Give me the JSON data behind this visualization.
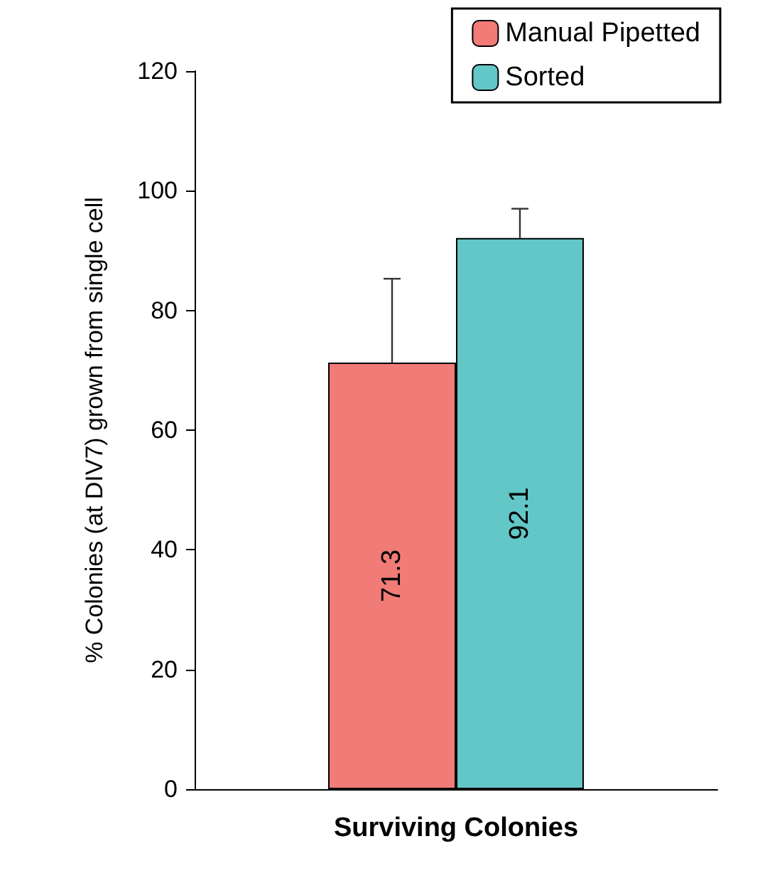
{
  "chart_data": {
    "type": "bar",
    "ylabel": "% Colonies (at DIV7) grown from single cell",
    "categories": [
      "Surviving Colonies"
    ],
    "series": [
      {
        "name": "Manual Pipetted",
        "color": "#f07b77",
        "values": [
          71.3
        ],
        "errors": [
          [
            71.3,
            85.3
          ]
        ]
      },
      {
        "name": "Sorted",
        "color": "#63c6c7",
        "values": [
          92.1
        ],
        "errors": [
          [
            92.1,
            97.0
          ]
        ]
      }
    ],
    "ylim": [
      0,
      120
    ],
    "yticks": [
      0,
      20,
      40,
      60,
      80,
      100,
      120
    ],
    "grid": false,
    "legend": "top right",
    "data_labels": true
  }
}
